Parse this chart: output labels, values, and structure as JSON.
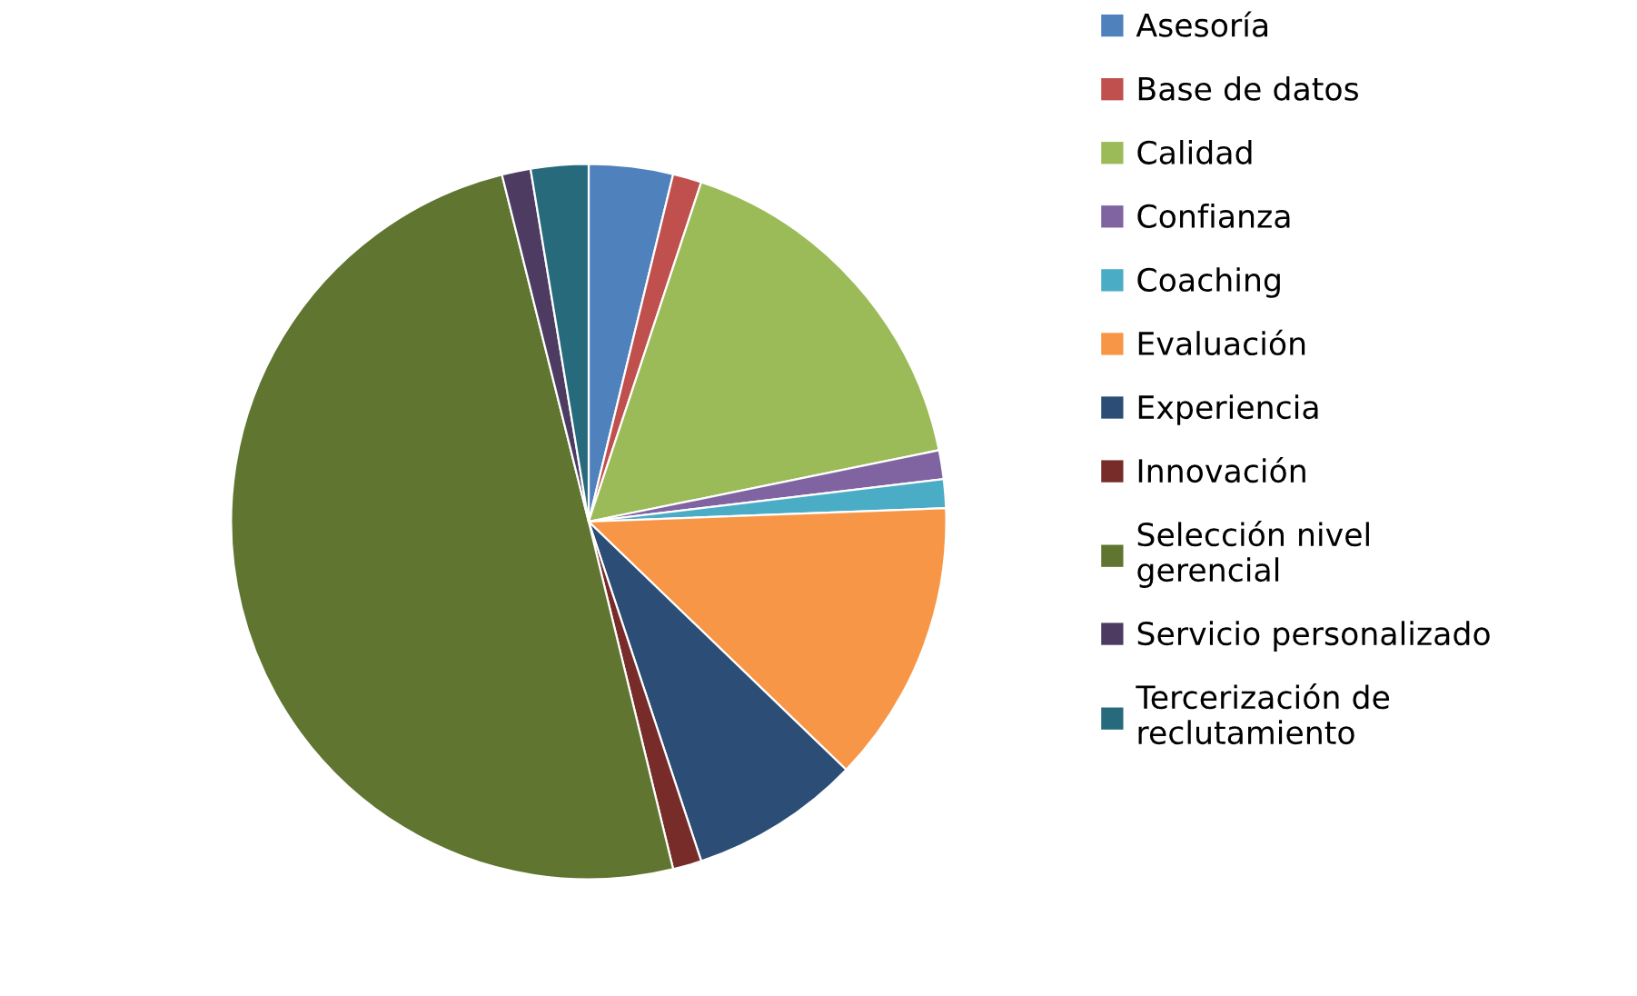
{
  "chart_data": {
    "type": "pie",
    "categories": [
      "Asesoría",
      "Base de datos",
      "Calidad",
      "Confianza",
      "Coaching",
      "Evaluación",
      "Experiencia",
      "Innovación",
      "Selección nivel gerencial",
      "Servicio personalizado",
      "Tercerización de reclutamiento"
    ],
    "values": [
      3.8,
      1.3,
      16.7,
      1.3,
      1.3,
      12.8,
      7.7,
      1.3,
      49.9,
      1.3,
      2.6
    ],
    "colors": [
      "#4f81bd",
      "#c0504d",
      "#9bbb59",
      "#8064a2",
      "#4bacc6",
      "#f79646",
      "#2c4d75",
      "#772c2a",
      "#5f7530",
      "#4d3b62",
      "#276a7c"
    ],
    "legend": "right"
  }
}
